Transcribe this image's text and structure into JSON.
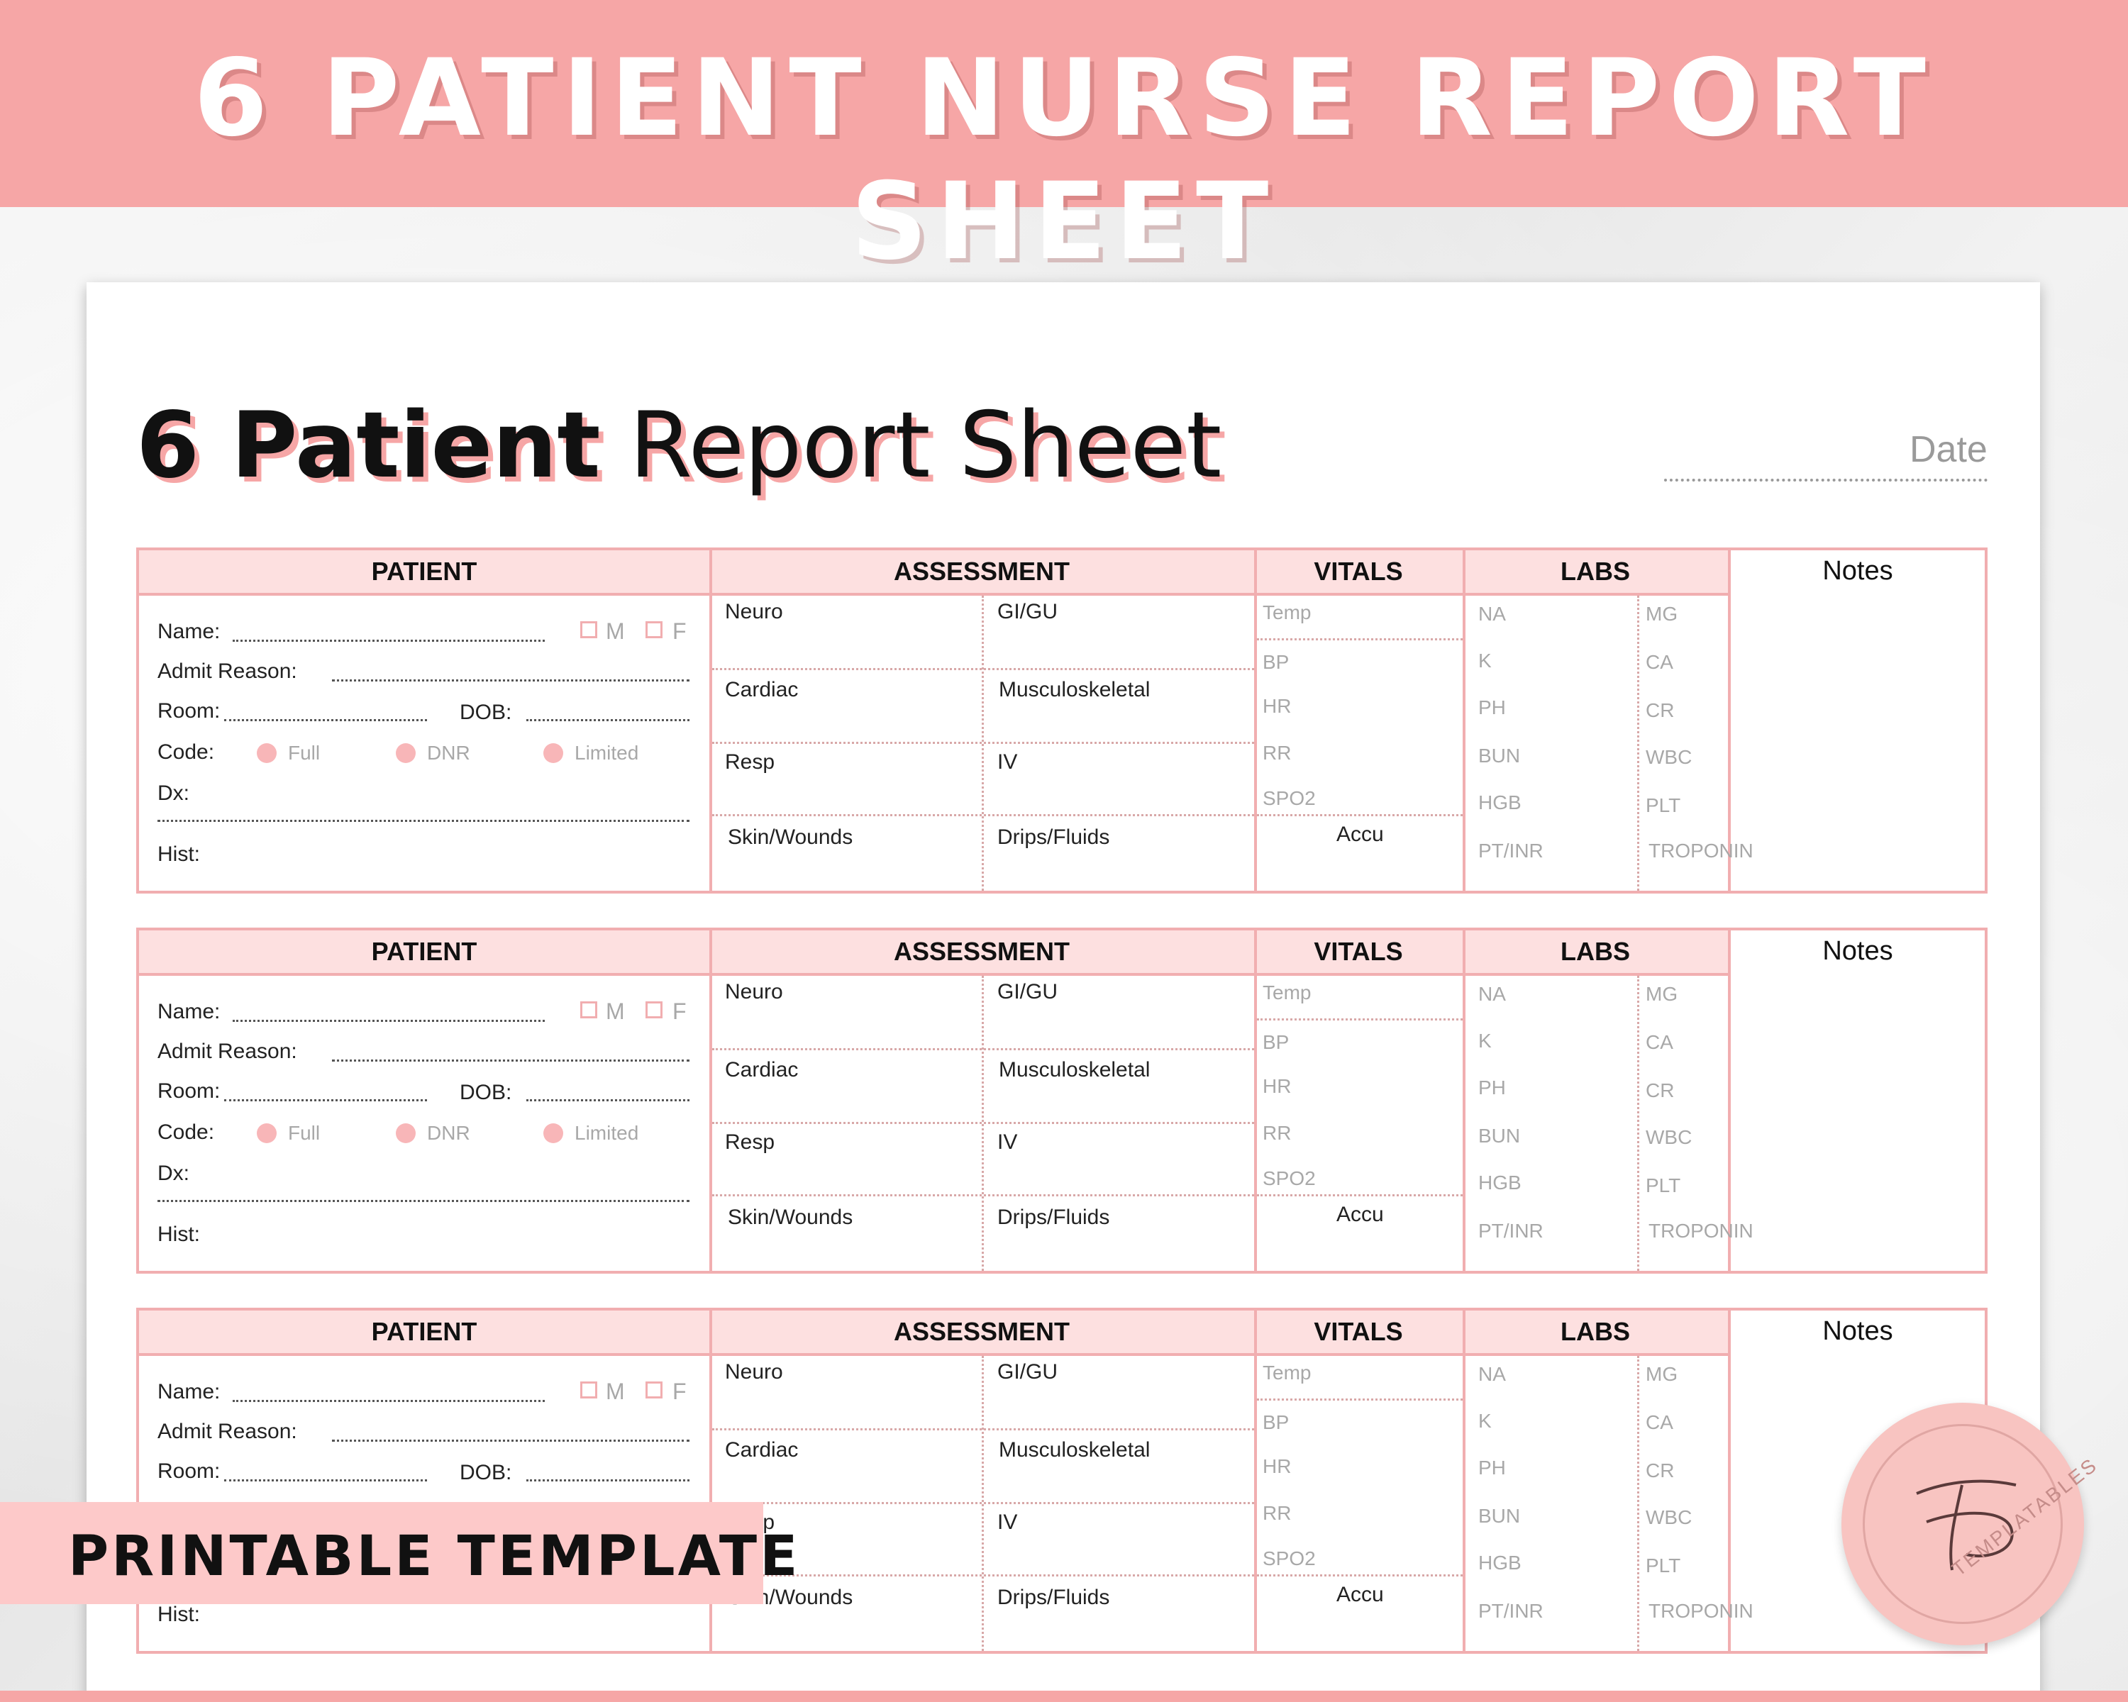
{
  "banner": {
    "title": "6 PATIENT NURSE REPORT SHEET"
  },
  "sheet": {
    "title_bold": "6 Patient",
    "title_light": "Report Sheet",
    "date_label": "Date"
  },
  "sections": {
    "patient": "PATIENT",
    "assessment": "ASSESSMENT",
    "vitals": "VITALS",
    "labs": "LABS",
    "notes": "Notes"
  },
  "patient_fields": {
    "name": "Name:",
    "male": "M",
    "female": "F",
    "admit": "Admit Reason:",
    "room": "Room:",
    "dob": "DOB:",
    "code": "Code:",
    "full": "Full",
    "dnr": "DNR",
    "limited": "Limited",
    "dx": "Dx:",
    "hist": "Hist:"
  },
  "assessment_fields": {
    "neuro": "Neuro",
    "gigu": "GI/GU",
    "cardiac": "Cardiac",
    "musculo": "Musculoskeletal",
    "resp": "Resp",
    "iv": "IV",
    "skin": "Skin/Wounds",
    "drips": "Drips/Fluids"
  },
  "vitals_fields": {
    "temp": "Temp",
    "bp": "BP",
    "hr": "HR",
    "rr": "RR",
    "spo2": "SPO2",
    "accu": "Accu"
  },
  "labs_fields": {
    "na": "NA",
    "k": "K",
    "ph": "PH",
    "bun": "BUN",
    "hgb": "HGB",
    "ptinr": "PT/INR",
    "mg": "MG",
    "ca": "CA",
    "cr": "CR",
    "wbc": "WBC",
    "plt": "PLT",
    "troponin": "TROPONIN"
  },
  "overlay": {
    "printable": "PRINTABLE TEMPLATE",
    "brand": "TEMPLATABLES"
  },
  "colors": {
    "accent": "#f6a6a6",
    "header_fill": "#fde0e0",
    "border": "#f1aeb0"
  }
}
